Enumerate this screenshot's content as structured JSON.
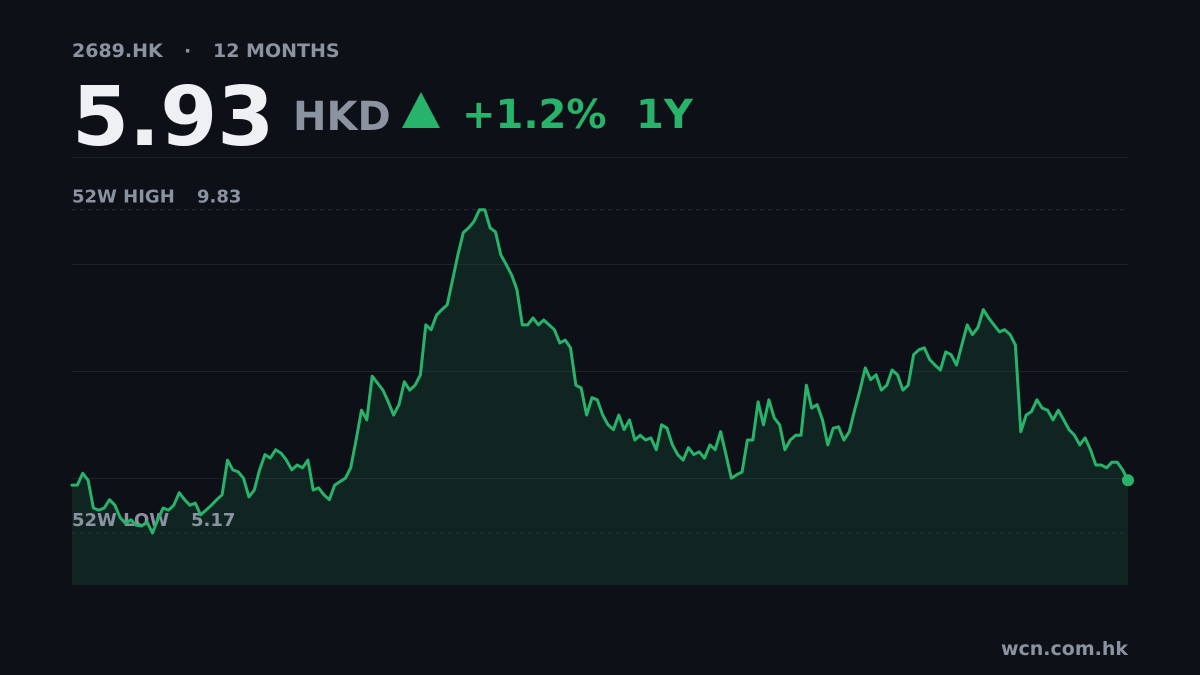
{
  "chart_data": {
    "type": "line",
    "ticker": "2689.HK",
    "separator": "·",
    "period": "12 MONTHS",
    "price": 5.93,
    "currency": "HKD",
    "change": "+1.2%",
    "range": "1Y",
    "high": {
      "label": "52W HIGH",
      "value": 9.83
    },
    "low": {
      "label": "52W LOW",
      "value": 5.17
    },
    "source": "wcn.com.hk",
    "color": "#27b36a",
    "ylim": [
      4.42,
      10.59
    ],
    "values": [
      5.86,
      5.86,
      6.03,
      5.93,
      5.53,
      5.5,
      5.53,
      5.65,
      5.57,
      5.39,
      5.31,
      5.36,
      5.28,
      5.27,
      5.33,
      5.17,
      5.36,
      5.53,
      5.5,
      5.57,
      5.75,
      5.65,
      5.57,
      5.6,
      5.43,
      5.5,
      5.57,
      5.65,
      5.72,
      6.22,
      6.08,
      6.05,
      5.96,
      5.69,
      5.79,
      6.08,
      6.3,
      6.25,
      6.37,
      6.32,
      6.22,
      6.08,
      6.15,
      6.11,
      6.22,
      5.79,
      5.82,
      5.72,
      5.65,
      5.86,
      5.91,
      5.96,
      6.11,
      6.51,
      6.94,
      6.8,
      7.43,
      7.33,
      7.23,
      7.06,
      6.87,
      7.02,
      7.35,
      7.23,
      7.3,
      7.45,
      8.17,
      8.1,
      8.31,
      8.39,
      8.46,
      8.82,
      9.18,
      9.5,
      9.57,
      9.66,
      9.83,
      9.83,
      9.57,
      9.51,
      9.18,
      9.04,
      8.89,
      8.68,
      8.17,
      8.17,
      8.27,
      8.17,
      8.24,
      8.17,
      8.1,
      7.91,
      7.95,
      7.84,
      7.3,
      7.26,
      6.87,
      7.12,
      7.09,
      6.87,
      6.73,
      6.66,
      6.87,
      6.66,
      6.8,
      6.51,
      6.58,
      6.51,
      6.54,
      6.37,
      6.73,
      6.68,
      6.44,
      6.3,
      6.22,
      6.4,
      6.3,
      6.34,
      6.25,
      6.44,
      6.37,
      6.63,
      6.3,
      5.96,
      6.01,
      6.05,
      6.51,
      6.51,
      7.06,
      6.73,
      7.09,
      6.83,
      6.73,
      6.37,
      6.51,
      6.58,
      6.58,
      7.3,
      6.97,
      7.02,
      6.8,
      6.44,
      6.68,
      6.7,
      6.51,
      6.63,
      6.94,
      7.23,
      7.55,
      7.38,
      7.45,
      7.23,
      7.3,
      7.52,
      7.45,
      7.23,
      7.3,
      7.74,
      7.81,
      7.84,
      7.67,
      7.59,
      7.52,
      7.78,
      7.74,
      7.59,
      7.88,
      8.17,
      8.03,
      8.13,
      8.39,
      8.27,
      8.17,
      8.07,
      8.1,
      8.03,
      7.88,
      6.63,
      6.87,
      6.92,
      7.09,
      6.97,
      6.94,
      6.8,
      6.94,
      6.8,
      6.66,
      6.58,
      6.44,
      6.54,
      6.37,
      6.15,
      6.15,
      6.11,
      6.19,
      6.19,
      6.08,
      5.93
    ]
  }
}
